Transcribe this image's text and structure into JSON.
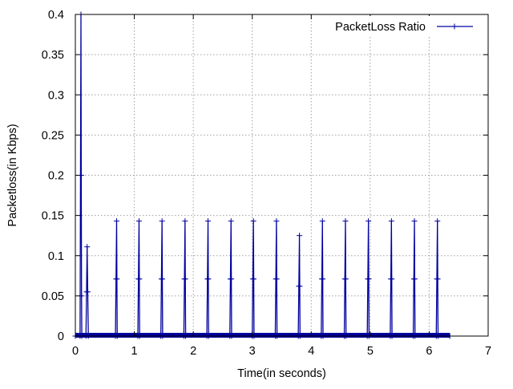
{
  "chart_data": {
    "type": "line",
    "title": "",
    "xlabel": "Time(in seconds)",
    "ylabel": "Packetloss(in Kbps)",
    "xlim": [
      0,
      7
    ],
    "ylim": [
      0,
      0.4
    ],
    "xticks": [
      0,
      1,
      2,
      3,
      4,
      5,
      6,
      7
    ],
    "xtick_labels": [
      "0",
      "1",
      "2",
      "3",
      "4",
      "5",
      "6",
      "7"
    ],
    "yticks": [
      0,
      0.05,
      0.1,
      0.15,
      0.2,
      0.25,
      0.3,
      0.35,
      0.4
    ],
    "ytick_labels": [
      "0",
      "0.05",
      "0.1",
      "0.15",
      "0.2",
      "0.25",
      "0.3",
      "0.35",
      "0.4"
    ],
    "grid": true,
    "legend_position": "top-right",
    "colors": {
      "series": "#0000a0",
      "grid": "#a0a0a0",
      "axis": "#000000"
    },
    "series": [
      {
        "name": "PacketLoss Ratio",
        "marker": "plus",
        "x": [
          0,
          0.08,
          0.0875,
          0.095,
          0.1,
          0.105,
          0.11,
          0.18,
          0.19,
          0.2,
          0.21,
          0.22,
          0.68,
          0.69,
          0.7,
          0.705,
          0.71,
          1.06,
          1.07,
          1.08,
          1.085,
          1.09,
          1.45,
          1.46,
          1.47,
          1.475,
          1.48,
          1.84,
          1.85,
          1.86,
          1.865,
          1.87,
          2.23,
          2.24,
          2.25,
          2.255,
          2.26,
          2.62,
          2.63,
          2.64,
          2.645,
          2.65,
          3.0,
          3.01,
          3.02,
          3.025,
          3.03,
          3.39,
          3.4,
          3.41,
          3.415,
          3.42,
          3.78,
          3.79,
          3.8,
          3.805,
          3.81,
          4.17,
          4.18,
          4.19,
          4.195,
          4.2,
          4.56,
          4.57,
          4.58,
          4.585,
          4.59,
          4.95,
          4.96,
          4.97,
          4.975,
          4.98,
          5.34,
          5.35,
          5.36,
          5.365,
          5.37,
          5.73,
          5.74,
          5.75,
          5.755,
          5.76,
          6.12,
          6.13,
          6.14,
          6.145,
          6.15,
          6.35
        ],
        "y": [
          0,
          0,
          0.2,
          0.4,
          0.2,
          0.05,
          0,
          0,
          0.055,
          0.111,
          0.055,
          0,
          0,
          0.071,
          0.143,
          0.071,
          0,
          0,
          0.071,
          0.143,
          0.071,
          0,
          0,
          0.071,
          0.143,
          0.071,
          0,
          0,
          0.071,
          0.143,
          0.071,
          0,
          0,
          0.071,
          0.143,
          0.071,
          0,
          0,
          0.071,
          0.143,
          0.071,
          0,
          0,
          0.071,
          0.143,
          0.071,
          0,
          0,
          0.071,
          0.143,
          0.071,
          0,
          0,
          0.062,
          0.125,
          0.062,
          0,
          0,
          0.071,
          0.143,
          0.071,
          0,
          0,
          0.071,
          0.143,
          0.071,
          0,
          0,
          0.071,
          0.143,
          0.071,
          0,
          0,
          0.071,
          0.143,
          0.071,
          0,
          0,
          0.071,
          0.143,
          0.071,
          0,
          0,
          0.071,
          0.143,
          0.071,
          0,
          0
        ]
      }
    ]
  }
}
